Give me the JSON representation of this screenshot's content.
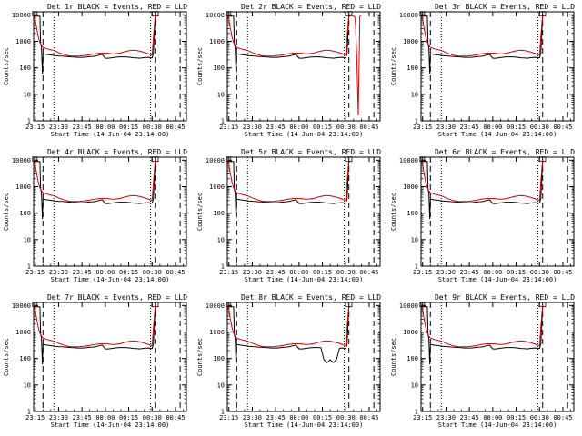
{
  "chart_data": [
    {
      "type": "line",
      "title": "Det 1r BLACK = Events, RED = LLD"
    },
    {
      "type": "line",
      "title": "Det 2r BLACK = Events, RED = LLD",
      "spike": "red"
    },
    {
      "type": "line",
      "title": "Det 3r BLACK = Events, RED = LLD"
    },
    {
      "type": "line",
      "title": "Det 4r BLACK = Events, RED = LLD"
    },
    {
      "type": "line",
      "title": "Det 5r BLACK = Events, RED = LLD"
    },
    {
      "type": "line",
      "title": "Det 6r BLACK = Events, RED = LLD"
    },
    {
      "type": "line",
      "title": "Det 7r BLACK = Events, RED = LLD"
    },
    {
      "type": "line",
      "title": "Det 8r BLACK = Events, RED = LLD",
      "dip": true
    },
    {
      "type": "line",
      "title": "Det 9r BLACK = Events, RED = LLD"
    }
  ],
  "common": {
    "xlabel": "Start Time (14-Jun-04 23:14:00)",
    "ylabel": "Counts/sec",
    "xticks": [
      "23:15",
      "23:30",
      "23:45",
      "00:00",
      "00:15",
      "00:30",
      "00:45"
    ],
    "xtick_minutes": [
      1,
      16,
      31,
      46,
      61,
      76,
      91
    ],
    "xlim_minutes": [
      0,
      98
    ],
    "yticks": [
      "1",
      "10",
      "100",
      "1000",
      "10000"
    ],
    "ylim": [
      1,
      13000
    ],
    "dashed_lines_minutes": [
      6,
      78,
      94
    ],
    "dotted_lines_minutes": [
      13,
      75
    ],
    "series": {
      "events": {
        "name": "Events",
        "color": "#000000",
        "x": [
          0.2,
          1,
          2,
          3,
          4,
          4.5,
          5,
          5.6,
          6,
          7,
          8,
          10,
          12,
          14,
          16,
          18,
          20,
          22,
          24,
          26,
          28,
          30,
          32,
          34,
          36,
          38,
          40,
          42,
          44,
          46,
          48,
          50,
          52,
          54,
          56,
          58,
          60,
          62,
          64,
          66,
          68,
          70,
          72,
          74,
          75,
          76,
          76.8,
          77.5,
          78
        ],
        "y": [
          9000,
          9000,
          9000,
          9000,
          9000,
          800,
          600,
          60,
          330,
          330,
          320,
          310,
          300,
          290,
          280,
          275,
          270,
          265,
          260,
          255,
          250,
          250,
          250,
          255,
          265,
          270,
          280,
          300,
          320,
          230,
          230,
          240,
          250,
          255,
          260,
          260,
          255,
          250,
          240,
          235,
          230,
          240,
          245,
          250,
          240,
          240,
          350,
          2500,
          9500
        ]
      },
      "lld": {
        "name": "LLD",
        "color": "#dd0000",
        "x": [
          0,
          1,
          2,
          3,
          4,
          5,
          6,
          7,
          8,
          10,
          12,
          14,
          16,
          18,
          20,
          22,
          24,
          26,
          28,
          30,
          32,
          34,
          36,
          38,
          40,
          42,
          44,
          46,
          48,
          50,
          52,
          54,
          56,
          58,
          60,
          62,
          64,
          66,
          68,
          70,
          72,
          74,
          76,
          77,
          78
        ],
        "y": [
          11000,
          7000,
          3000,
          1500,
          900,
          700,
          600,
          560,
          530,
          500,
          470,
          430,
          380,
          340,
          310,
          290,
          280,
          275,
          275,
          280,
          290,
          300,
          310,
          330,
          345,
          355,
          360,
          360,
          350,
          340,
          340,
          350,
          370,
          400,
          430,
          450,
          460,
          450,
          430,
          400,
          370,
          330,
          300,
          2000,
          10000
        ]
      }
    }
  }
}
